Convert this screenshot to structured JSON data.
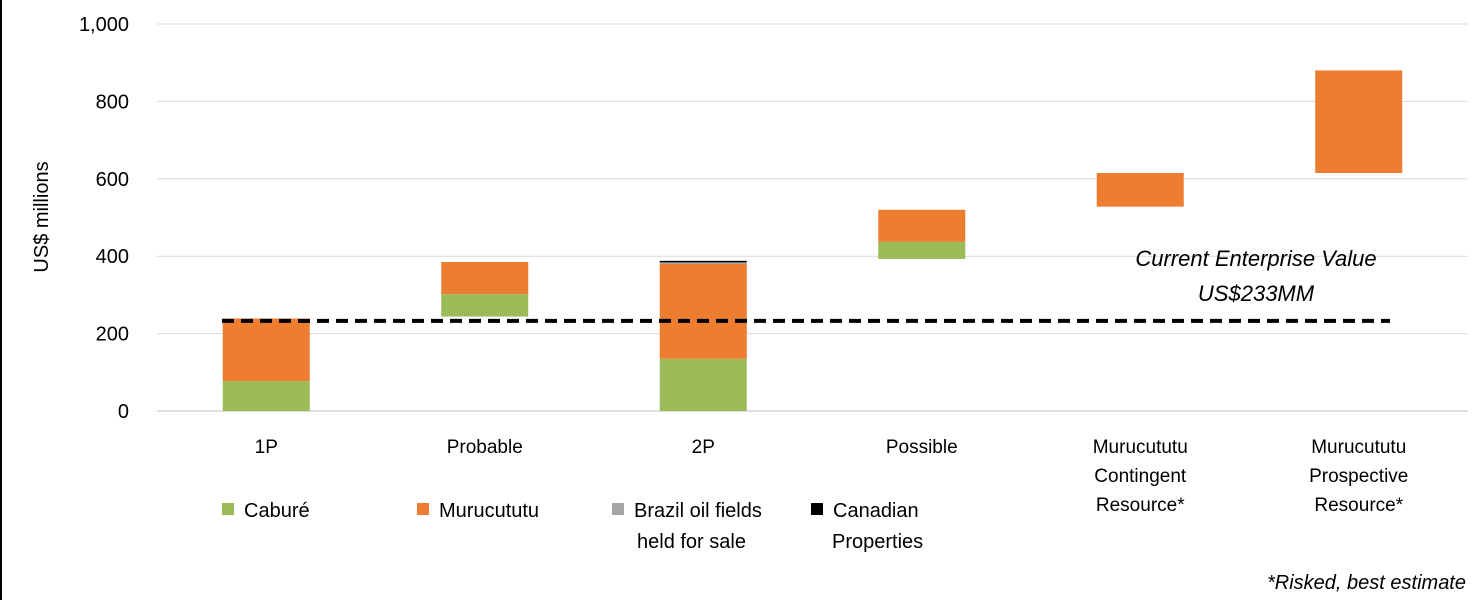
{
  "chart_data": {
    "type": "bar",
    "subtype": "floating-stacked-waterfall",
    "ylabel": "US$ millions",
    "ylim": [
      0,
      1000
    ],
    "yticks": [
      0,
      200,
      400,
      600,
      800,
      1000
    ],
    "ytick_labels": [
      "0",
      "200",
      "400",
      "600",
      "800",
      "1,000"
    ],
    "grid": true,
    "categories": [
      [
        "1P"
      ],
      [
        "Probable"
      ],
      [
        "2P"
      ],
      [
        "Possible"
      ],
      [
        "Murucututu",
        "Contingent",
        "Resource*"
      ],
      [
        "Murucututu",
        "Prospective",
        "Resource*"
      ]
    ],
    "series": [
      {
        "name": "Caburé",
        "color": "#9bbb59",
        "segments": [
          [
            0,
            77
          ],
          [
            244,
            302
          ],
          [
            0,
            135
          ],
          [
            393,
            437
          ],
          null,
          null
        ]
      },
      {
        "name": "Murucututu",
        "color": "#ed7d31",
        "segments": [
          [
            77,
            239
          ],
          [
            302,
            385
          ],
          [
            135,
            380
          ],
          [
            437,
            520
          ],
          [
            528,
            615
          ],
          [
            615,
            880
          ]
        ]
      },
      {
        "name": [
          "Brazil oil fields",
          "held for sale"
        ],
        "color": "#a5a5a5",
        "segments": [
          null,
          null,
          [
            380,
            384
          ],
          null,
          null,
          null
        ]
      },
      {
        "name": [
          "Canadian",
          "Properties"
        ],
        "color": "#000000",
        "segments": [
          null,
          null,
          [
            384,
            388
          ],
          null,
          null,
          null
        ]
      }
    ],
    "reference_line": {
      "value": 233,
      "style": "dashed",
      "color": "#000000",
      "label": [
        "Current Enterprise Value",
        "US$233MM"
      ]
    },
    "legend_placement": "bottom-left",
    "footnote": "*Risked, best estimate"
  }
}
